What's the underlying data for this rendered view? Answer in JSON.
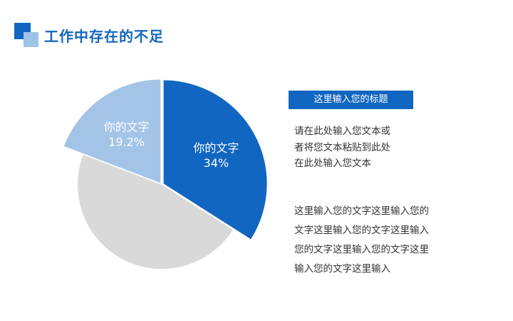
{
  "header": {
    "title": "工作中存在的不足",
    "accent_color": "#1166c1",
    "accent_light_color": "#9fc2e6"
  },
  "chart_data": {
    "type": "pie",
    "title": "",
    "slices": [
      {
        "label": "你的文字",
        "value_label": "34%",
        "value": 34,
        "color": "#1166c1",
        "exploded": true
      },
      {
        "label": "",
        "value_label": "",
        "value": 46.8,
        "color": "#d9d9d9",
        "exploded": false
      },
      {
        "label": "你的文字",
        "value_label": "19.2%",
        "value": 19.2,
        "color": "#a3c4e6",
        "exploded": true
      }
    ]
  },
  "panel": {
    "subtitle": "这里输入您的标题",
    "description_lines": [
      "请在此处输入您文本或",
      "者将您文本粘贴到此处",
      "在此处输入您文本"
    ],
    "body_lines": [
      "这里输入您的文字这里输入您的",
      "文字这里输入您的文字这里输入",
      "您的文字这里输入您的文字这里",
      "输入您的文字这里输入"
    ]
  }
}
